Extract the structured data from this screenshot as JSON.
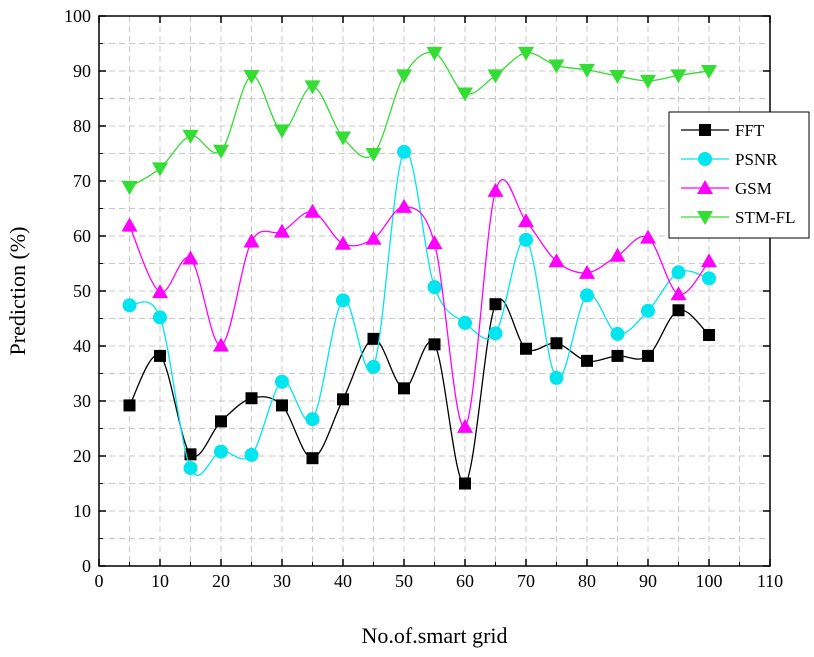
{
  "chart_data": {
    "type": "line",
    "title": "",
    "xlabel": "No.of.smart grid",
    "ylabel": "Prediction (%)",
    "xlim": [
      0,
      110
    ],
    "ylim": [
      0,
      100
    ],
    "x_ticks": [
      0,
      10,
      20,
      30,
      40,
      50,
      60,
      70,
      80,
      90,
      100,
      110
    ],
    "y_ticks": [
      0,
      10,
      20,
      30,
      40,
      50,
      60,
      70,
      80,
      90,
      100
    ],
    "grid": true,
    "smooth": true,
    "legend_position": "top-right",
    "x": [
      5,
      10,
      15,
      20,
      25,
      30,
      35,
      40,
      45,
      50,
      55,
      60,
      65,
      70,
      75,
      80,
      85,
      90,
      95,
      100
    ],
    "series": [
      {
        "name": "FFT",
        "color": "#000000",
        "marker": "square",
        "values": [
          29.2,
          38.2,
          20.3,
          26.3,
          30.5,
          29.2,
          19.6,
          30.3,
          41.3,
          32.3,
          40.3,
          15.0,
          47.6,
          39.5,
          40.5,
          37.3,
          38.2,
          38.2,
          46.5,
          42.0
        ]
      },
      {
        "name": "PSNR",
        "color": "#00e5ee",
        "marker": "circle",
        "values": [
          47.4,
          45.2,
          17.8,
          20.8,
          20.2,
          33.5,
          26.7,
          48.3,
          36.2,
          75.3,
          50.7,
          44.2,
          42.3,
          59.3,
          34.2,
          49.2,
          42.2,
          46.4,
          53.4,
          52.3
        ]
      },
      {
        "name": "GSM",
        "color": "#ff00ff",
        "marker": "triangle-up",
        "values": [
          61.9,
          49.8,
          55.9,
          40.1,
          59.0,
          60.8,
          64.4,
          58.6,
          59.5,
          65.3,
          58.7,
          25.3,
          68.2,
          62.7,
          55.4,
          53.3,
          56.4,
          59.7,
          49.4,
          55.4
        ]
      },
      {
        "name": "STM-FL",
        "color": "#33dd33",
        "marker": "triangle-down",
        "values": [
          68.9,
          72.3,
          78.2,
          75.5,
          89.1,
          79.2,
          87.2,
          77.9,
          74.9,
          89.2,
          93.3,
          85.9,
          89.2,
          93.3,
          91.0,
          90.2,
          89.1,
          88.2,
          89.2,
          90.0
        ]
      }
    ]
  }
}
